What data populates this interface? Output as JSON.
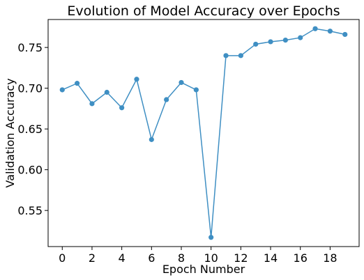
{
  "chart_data": {
    "type": "line",
    "title": "Evolution of Model Accuracy over Epochs",
    "xlabel": "Epoch Number",
    "ylabel": "Validation Accuracy",
    "x": [
      0,
      1,
      2,
      3,
      4,
      5,
      6,
      7,
      8,
      9,
      10,
      11,
      12,
      13,
      14,
      15,
      16,
      17,
      18,
      19
    ],
    "y": [
      0.698,
      0.706,
      0.681,
      0.695,
      0.676,
      0.711,
      0.637,
      0.686,
      0.707,
      0.698,
      0.517,
      0.74,
      0.74,
      0.754,
      0.757,
      0.759,
      0.762,
      0.773,
      0.77,
      0.766
    ],
    "xlim": [
      -0.95,
      19.95
    ],
    "ylim": [
      0.5057,
      0.7843
    ],
    "xticks": [
      0,
      2,
      4,
      6,
      8,
      10,
      12,
      14,
      16,
      18
    ],
    "xtick_labels": [
      "0",
      "2",
      "4",
      "6",
      "8",
      "10",
      "12",
      "14",
      "16",
      "18"
    ],
    "yticks": [
      0.55,
      0.6,
      0.65,
      0.7,
      0.75
    ],
    "ytick_labels": [
      "0.55",
      "0.60",
      "0.65",
      "0.70",
      "0.75"
    ],
    "grid": false,
    "line_color": "#3f8fc3",
    "marker": "circle"
  }
}
